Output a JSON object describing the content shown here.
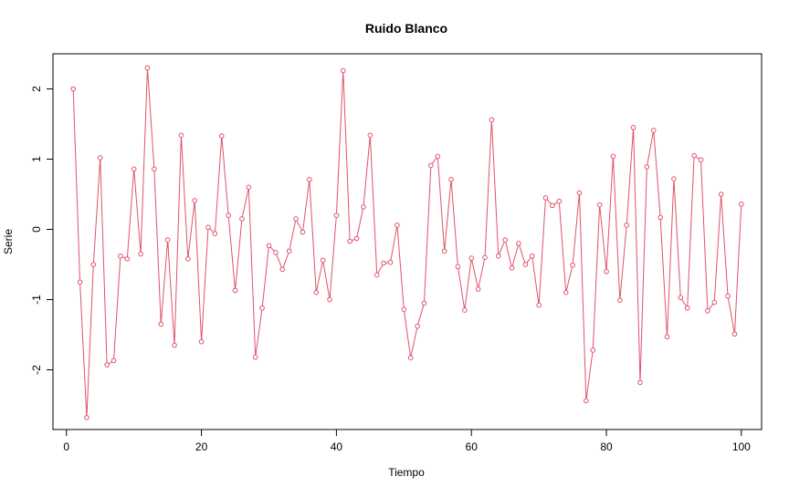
{
  "chart_data": {
    "type": "line",
    "title": "Ruido Blanco",
    "xlabel": "Tiempo",
    "ylabel": "Serie",
    "xlim": [
      -2,
      103
    ],
    "ylim": [
      -2.85,
      2.5
    ],
    "x_ticks": [
      0,
      20,
      40,
      60,
      80,
      100
    ],
    "x_tick_labels": [
      "0",
      "20",
      "40",
      "60",
      "80",
      "100"
    ],
    "y_ticks": [
      -2,
      -1,
      0,
      1,
      2
    ],
    "y_tick_labels": [
      "-2",
      "-1",
      "0",
      "1",
      "2"
    ],
    "grid": false,
    "markers": "open-circle",
    "colors": {
      "series": "#DF536B",
      "axis": "#000000",
      "background": "#FFFFFF"
    },
    "x": [
      1,
      2,
      3,
      4,
      5,
      6,
      7,
      8,
      9,
      10,
      11,
      12,
      13,
      14,
      15,
      16,
      17,
      18,
      19,
      20,
      21,
      22,
      23,
      24,
      25,
      26,
      27,
      28,
      29,
      30,
      31,
      32,
      33,
      34,
      35,
      36,
      37,
      38,
      39,
      40,
      41,
      42,
      43,
      44,
      45,
      46,
      47,
      48,
      49,
      50,
      51,
      52,
      53,
      54,
      55,
      56,
      57,
      58,
      59,
      60,
      61,
      62,
      63,
      64,
      65,
      66,
      67,
      68,
      69,
      70,
      71,
      72,
      73,
      74,
      75,
      76,
      77,
      78,
      79,
      80,
      81,
      82,
      83,
      84,
      85,
      86,
      87,
      88,
      89,
      90,
      91,
      92,
      93,
      94,
      95,
      96,
      97,
      98,
      99,
      100
    ],
    "y": [
      2.0,
      -0.75,
      -2.68,
      -0.5,
      1.02,
      -1.93,
      -1.87,
      -0.38,
      -0.42,
      0.86,
      -0.35,
      2.3,
      0.86,
      -1.35,
      -0.15,
      -1.65,
      1.34,
      -0.42,
      0.41,
      -1.6,
      0.03,
      -0.06,
      1.33,
      0.2,
      -0.87,
      0.15,
      0.6,
      -1.82,
      -1.12,
      -0.23,
      -0.33,
      -0.57,
      -0.31,
      0.15,
      -0.04,
      0.71,
      -0.9,
      -0.44,
      -1.0,
      0.2,
      2.26,
      -0.17,
      -0.13,
      0.32,
      1.34,
      -0.65,
      -0.48,
      -0.47,
      0.06,
      -1.14,
      -1.83,
      -1.38,
      -1.05,
      0.91,
      1.04,
      -0.31,
      0.71,
      -0.53,
      -1.15,
      -0.41,
      -0.85,
      -0.4,
      1.56,
      -0.38,
      -0.15,
      -0.55,
      -0.2,
      -0.5,
      -0.38,
      -1.08,
      0.45,
      0.34,
      0.4,
      -0.9,
      -0.51,
      0.52,
      -2.44,
      -1.72,
      0.35,
      -0.6,
      1.04,
      -1.01,
      0.06,
      1.45,
      -2.18,
      0.89,
      1.41,
      0.17,
      -1.53,
      0.72,
      -0.97,
      -1.12,
      1.05,
      0.99,
      -1.16,
      -1.04,
      0.5,
      -0.95,
      -1.49,
      0.36
    ]
  }
}
